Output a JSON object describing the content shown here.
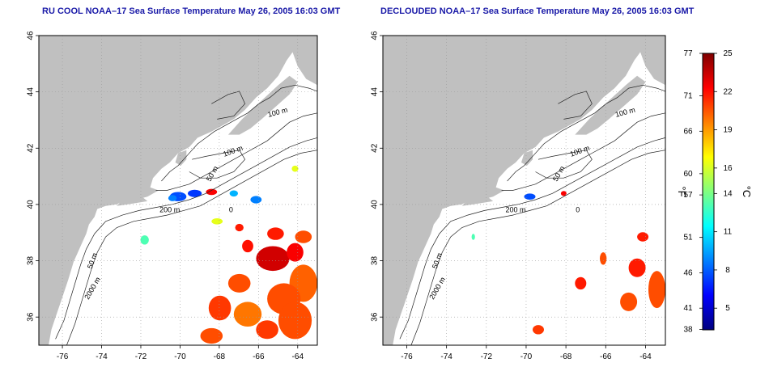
{
  "panels": [
    {
      "title": "RU COOL NOAA–17 Sea Surface Temperature May 26, 2005 16:03 GMT",
      "type": "raw"
    },
    {
      "title": "DECLOUDED NOAA–17 Sea Surface Temperature May 26, 2005 16:03 GMT",
      "type": "declouded"
    }
  ],
  "map": {
    "lon_range": [
      -77.2,
      -63.0
    ],
    "lat_range": [
      35.0,
      46.0
    ],
    "x_ticks": [
      "-76",
      "-74",
      "-72",
      "-70",
      "-68",
      "-66",
      "-64"
    ],
    "y_ticks": [
      "36",
      "38",
      "40",
      "42",
      "44",
      "46"
    ],
    "land_color": "#c0c0c0",
    "contour_labels": [
      "100 m",
      "100 m",
      "50 m",
      "200 m",
      "0",
      "50 m",
      "2000 m"
    ]
  },
  "colorbar": {
    "label_f": "°F",
    "label_c": "°C",
    "f_ticks": [
      "77",
      "71",
      "66",
      "60",
      "57",
      "51",
      "46",
      "41",
      "38"
    ],
    "c_ticks": [
      "25",
      "22",
      "19",
      "16",
      "14",
      "11",
      "8",
      "5"
    ],
    "c_range": [
      3.3,
      25
    ],
    "colors": [
      "#00007f",
      "#0000ff",
      "#0080ff",
      "#00ffff",
      "#80ff80",
      "#ffff00",
      "#ff8000",
      "#ff0000",
      "#7f0000"
    ]
  }
}
